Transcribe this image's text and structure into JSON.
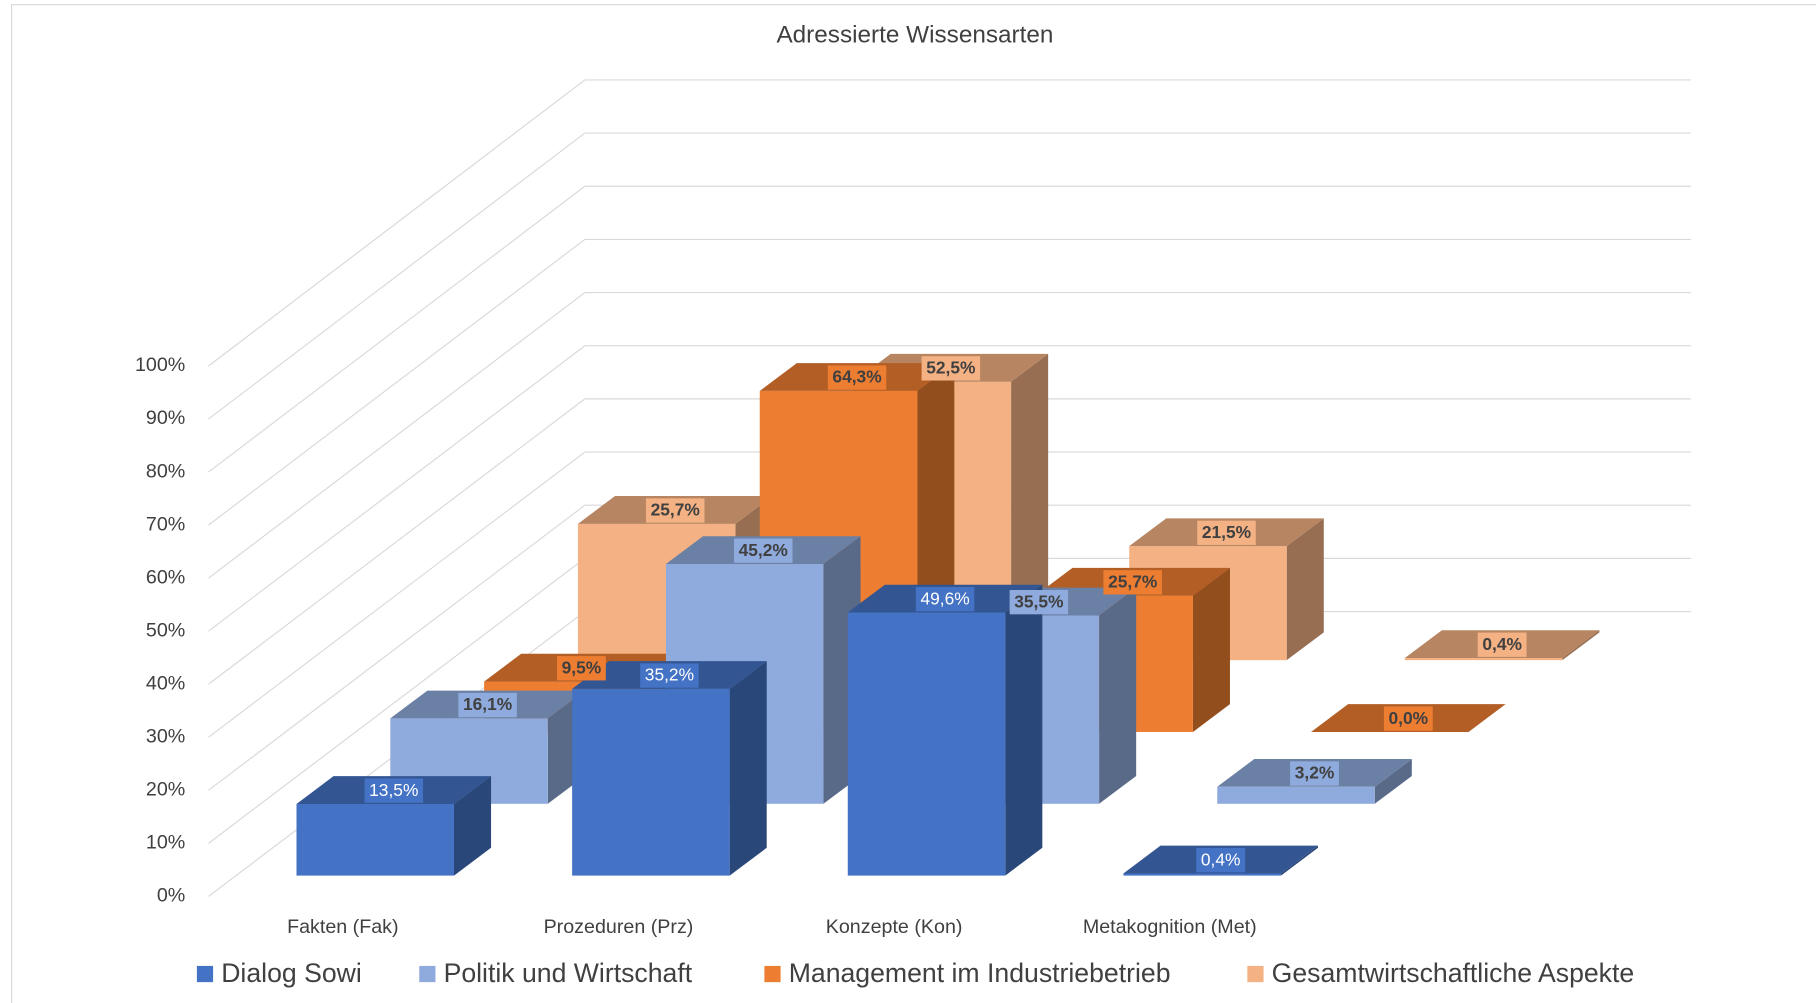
{
  "chart_data": {
    "type": "bar3d",
    "title": "Adressierte Wissensarten",
    "categories": [
      "Fakten (Fak)",
      "Prozeduren (Prz)",
      "Konzepte (Kon)",
      "Metakognition (Met)"
    ],
    "series": [
      {
        "name": "Dialog Sowi",
        "color": "#4472c4",
        "values": [
          13.5,
          35.2,
          49.6,
          0.4
        ],
        "value_labels": [
          "13,5%",
          "35,2%",
          "49,6%",
          "0,4%"
        ]
      },
      {
        "name": "Politik und Wirtschaft",
        "color": "#8faadc",
        "values": [
          16.1,
          45.2,
          35.5,
          3.2
        ],
        "value_labels": [
          "16,1%",
          "45,2%",
          "35,5%",
          "3,2%"
        ]
      },
      {
        "name": "Management im Industriebetrieb",
        "color": "#ed7d31",
        "values": [
          9.5,
          64.3,
          25.7,
          0.0
        ],
        "value_labels": [
          "9,5%",
          "64,3%",
          "25,7%",
          "0,0%"
        ]
      },
      {
        "name": "Gesamtwirtschaftliche Aspekte",
        "color": "#f4b183",
        "values": [
          25.7,
          52.5,
          21.5,
          0.4
        ],
        "value_labels": [
          "25,7%",
          "52,5%",
          "21,5%",
          "0,4%"
        ]
      }
    ],
    "ylim": [
      0,
      100
    ],
    "yticks": [
      {
        "value": 0,
        "label": "0%"
      },
      {
        "value": 10,
        "label": "10%"
      },
      {
        "value": 20,
        "label": "20%"
      },
      {
        "value": 30,
        "label": "30%"
      },
      {
        "value": 40,
        "label": "40%"
      },
      {
        "value": 50,
        "label": "50%"
      },
      {
        "value": 60,
        "label": "60%"
      },
      {
        "value": 70,
        "label": "70%"
      },
      {
        "value": 80,
        "label": "80%"
      },
      {
        "value": 90,
        "label": "90%"
      },
      {
        "value": 100,
        "label": "100%"
      }
    ],
    "grid": true,
    "legend": "bottom"
  }
}
